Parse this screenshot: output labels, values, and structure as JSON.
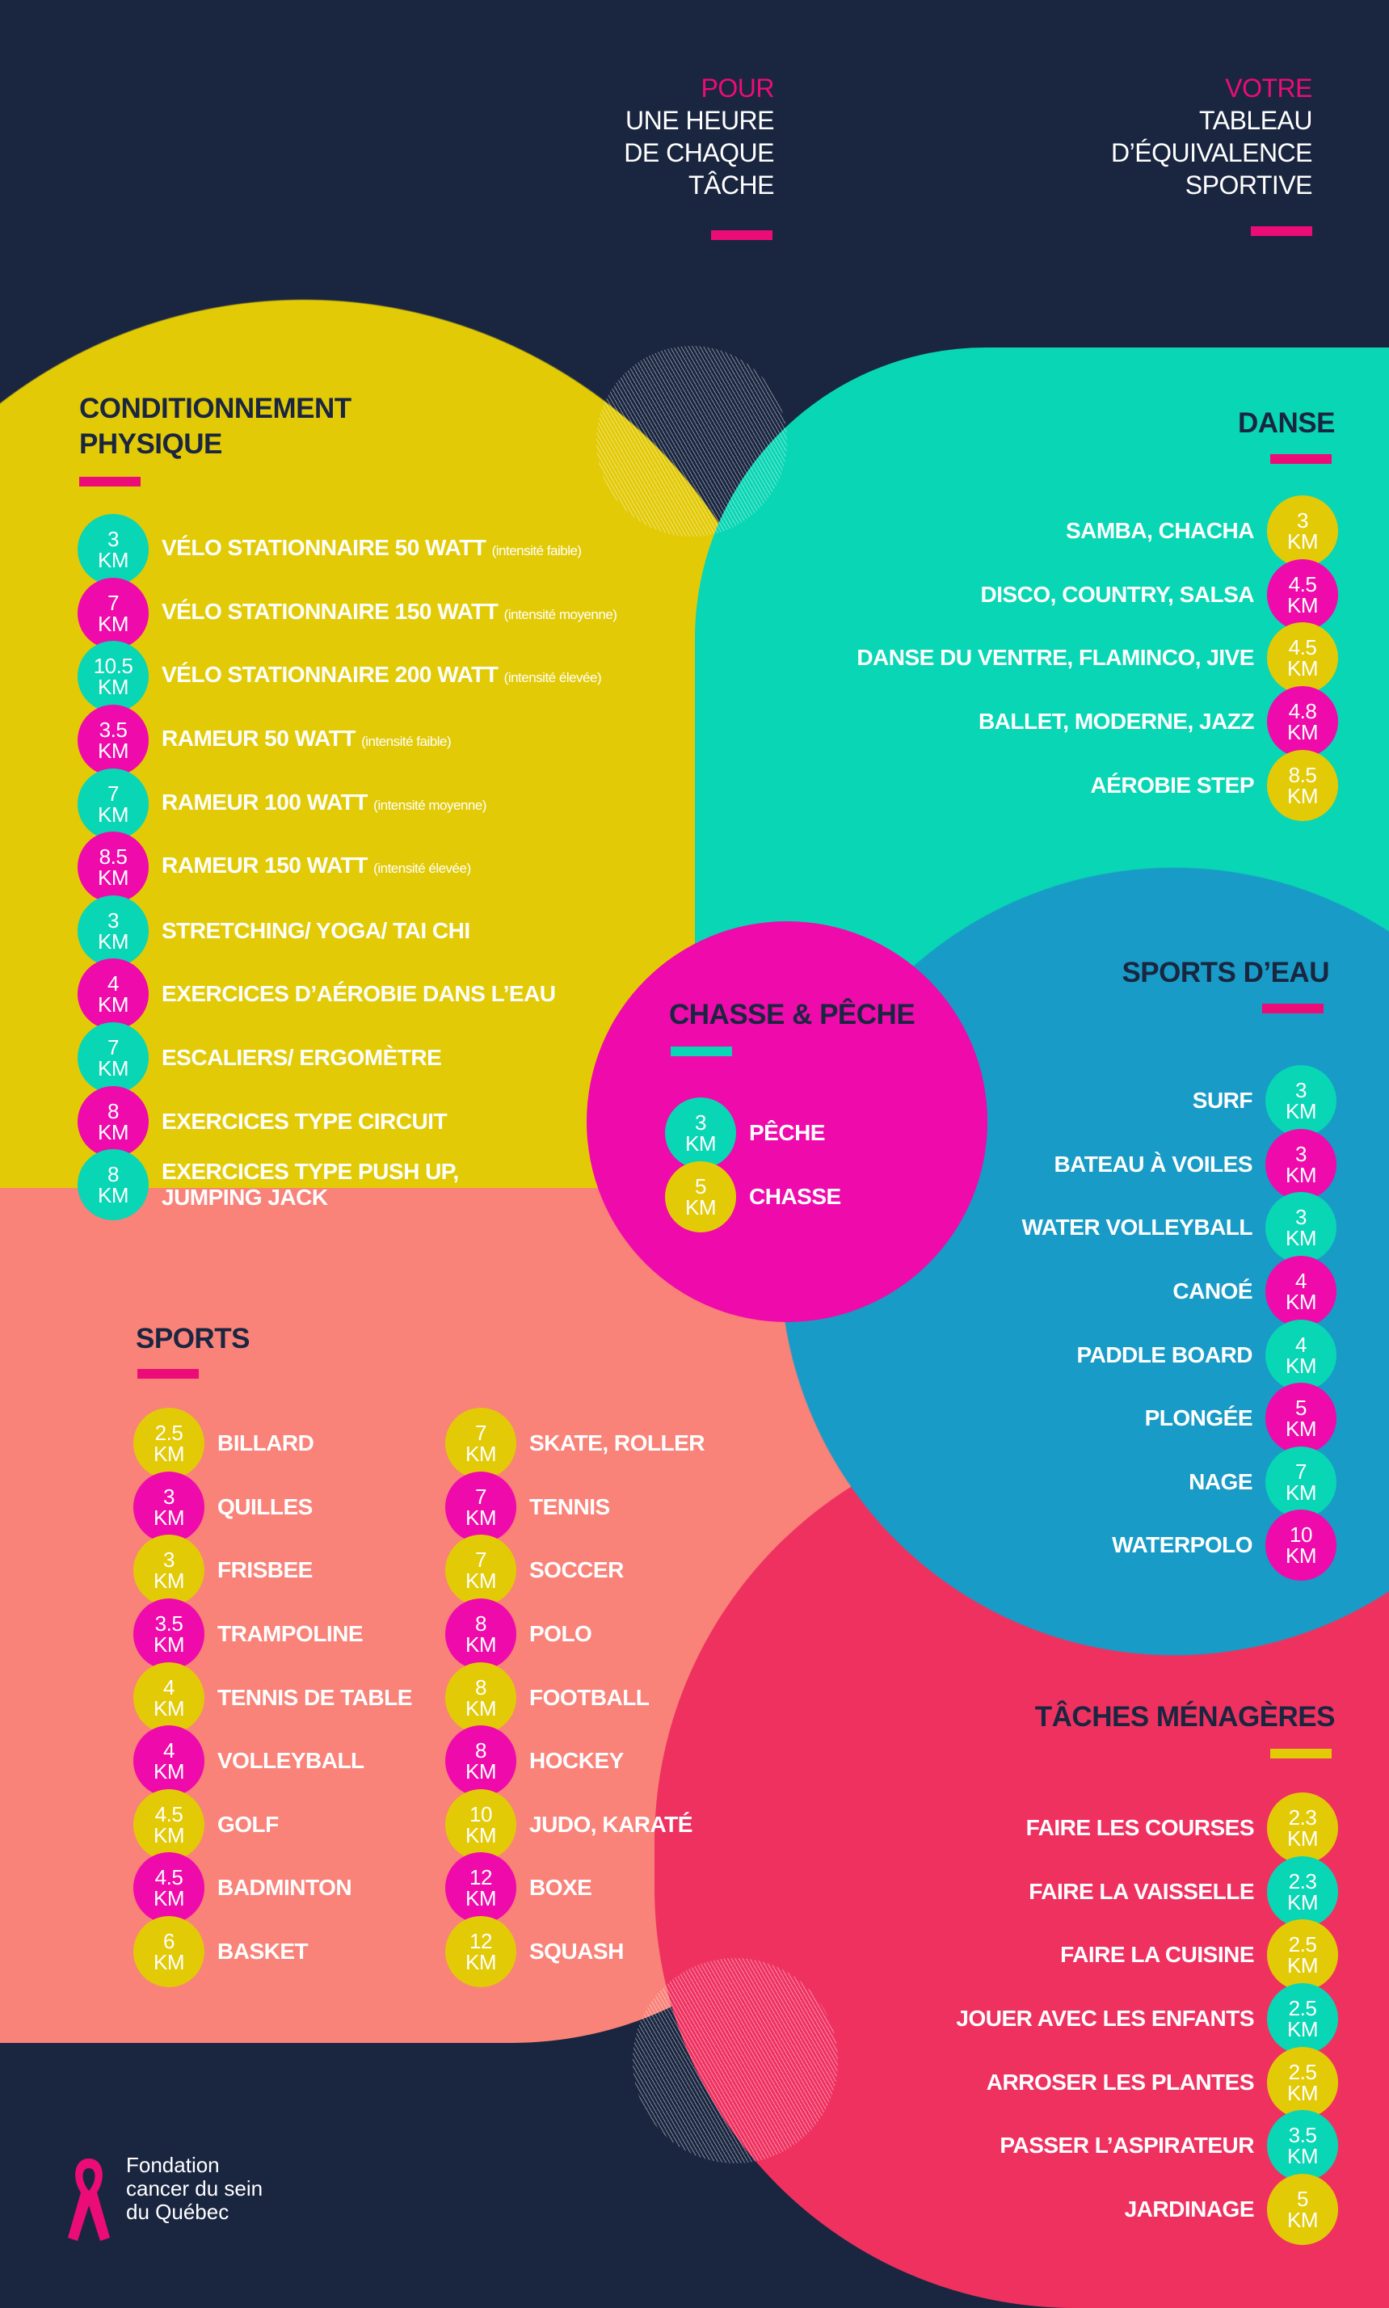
{
  "colors": {
    "background": "#1a2640",
    "yellow": "#e3ca06",
    "teal": "#08d6b4",
    "blue": "#189bc6",
    "salmon": "#f98279",
    "red": "#ef3160",
    "magenta": "#ef0aab",
    "accent_bar": "#ec0c77"
  },
  "header": {
    "left": {
      "accent": "POUR",
      "lines": [
        "UNE HEURE",
        "DE CHAQUE",
        "TÂCHE"
      ]
    },
    "right": {
      "accent": "VOTRE",
      "lines": [
        "TABLEAU",
        "D’ÉQUIVALENCE",
        "SPORTIVE"
      ]
    }
  },
  "unit": "KM",
  "sections": {
    "fitness": {
      "title": [
        "CONDITIONNEMENT",
        "PHYSIQUE"
      ],
      "items": [
        {
          "km": "3",
          "label": "VÉLO STATIONNAIRE 50 WATT",
          "note": "(intensité faible)",
          "color": "#08d6b4"
        },
        {
          "km": "7",
          "label": "VÉLO STATIONNAIRE 150 WATT",
          "note": "(intensité moyenne)",
          "color": "#ef0aab"
        },
        {
          "km": "10.5",
          "label": "VÉLO STATIONNAIRE 200 WATT",
          "note": "(intensité élevée)",
          "color": "#08d6b4"
        },
        {
          "km": "3.5",
          "label": "RAMEUR 50 WATT",
          "note": "(intensité faible)",
          "color": "#ef0aab"
        },
        {
          "km": "7",
          "label": "RAMEUR 100 WATT",
          "note": "(intensité moyenne)",
          "color": "#08d6b4"
        },
        {
          "km": "8.5",
          "label": "RAMEUR 150 WATT",
          "note": "(intensité élevée)",
          "color": "#ef0aab"
        },
        {
          "km": "3",
          "label": "STRETCHING/ YOGA/ TAI CHI",
          "color": "#08d6b4"
        },
        {
          "km": "4",
          "label": "EXERCICES D’AÉROBIE DANS L’EAU",
          "color": "#ef0aab"
        },
        {
          "km": "7",
          "label": "ESCALIERS/ ERGOMÈTRE",
          "color": "#08d6b4"
        },
        {
          "km": "8",
          "label": "EXERCICES TYPE CIRCUIT",
          "color": "#ef0aab"
        },
        {
          "km": "8",
          "label": "EXERCICES TYPE PUSH UP,",
          "label2": "JUMPING JACK",
          "color": "#08d6b4"
        }
      ]
    },
    "danse": {
      "title": [
        "DANSE"
      ],
      "items": [
        {
          "km": "3",
          "label": "SAMBA, CHACHA",
          "color": "#e3ca06"
        },
        {
          "km": "4.5",
          "label": "DISCO, COUNTRY, SALSA",
          "color": "#ef0aab"
        },
        {
          "km": "4.5",
          "label": "DANSE DU VENTRE, FLAMINCO, JIVE",
          "color": "#e3ca06"
        },
        {
          "km": "4.8",
          "label": "BALLET, MODERNE, JAZZ",
          "color": "#ef0aab"
        },
        {
          "km": "8.5",
          "label": "AÉROBIE STEP",
          "color": "#e3ca06"
        }
      ]
    },
    "eau": {
      "title": [
        "SPORTS D’EAU"
      ],
      "items": [
        {
          "km": "3",
          "label": "SURF",
          "color": "#08d6b4"
        },
        {
          "km": "3",
          "label": "BATEAU À VOILES",
          "color": "#ef0aab"
        },
        {
          "km": "3",
          "label": "WATER VOLLEYBALL",
          "color": "#08d6b4"
        },
        {
          "km": "4",
          "label": "CANOÉ",
          "color": "#ef0aab"
        },
        {
          "km": "4",
          "label": "PADDLE BOARD",
          "color": "#08d6b4"
        },
        {
          "km": "5",
          "label": "PLONGÉE",
          "color": "#ef0aab"
        },
        {
          "km": "7",
          "label": "NAGE",
          "color": "#08d6b4"
        },
        {
          "km": "10",
          "label": "WATERPOLO",
          "color": "#ef0aab"
        }
      ]
    },
    "chasse": {
      "title": [
        "CHASSE & PÊCHE"
      ],
      "items": [
        {
          "km": "3",
          "label": "PÊCHE",
          "color": "#08d6b4"
        },
        {
          "km": "5",
          "label": "CHASSE",
          "color": "#e3ca06"
        }
      ]
    },
    "sports": {
      "title": [
        "SPORTS"
      ],
      "col1": [
        {
          "km": "2.5",
          "label": "BILLARD",
          "color": "#e3ca06"
        },
        {
          "km": "3",
          "label": "QUILLES",
          "color": "#ef0aab"
        },
        {
          "km": "3",
          "label": "FRISBEE",
          "color": "#e3ca06"
        },
        {
          "km": "3.5",
          "label": "TRAMPOLINE",
          "color": "#ef0aab"
        },
        {
          "km": "4",
          "label": "TENNIS DE TABLE",
          "color": "#e3ca06"
        },
        {
          "km": "4",
          "label": "VOLLEYBALL",
          "color": "#ef0aab"
        },
        {
          "km": "4.5",
          "label": "GOLF",
          "color": "#e3ca06"
        },
        {
          "km": "4.5",
          "label": "BADMINTON",
          "color": "#ef0aab"
        },
        {
          "km": "6",
          "label": "BASKET",
          "color": "#e3ca06"
        }
      ],
      "col2": [
        {
          "km": "7",
          "label": "SKATE, ROLLER",
          "color": "#e3ca06"
        },
        {
          "km": "7",
          "label": "TENNIS",
          "color": "#ef0aab"
        },
        {
          "km": "7",
          "label": "SOCCER",
          "color": "#e3ca06"
        },
        {
          "km": "8",
          "label": "POLO",
          "color": "#ef0aab"
        },
        {
          "km": "8",
          "label": "FOOTBALL",
          "color": "#e3ca06"
        },
        {
          "km": "8",
          "label": "HOCKEY",
          "color": "#ef0aab"
        },
        {
          "km": "10",
          "label": "JUDO, KARATÉ",
          "color": "#e3ca06"
        },
        {
          "km": "12",
          "label": "BOXE",
          "color": "#ef0aab"
        },
        {
          "km": "12",
          "label": "SQUASH",
          "color": "#e3ca06"
        }
      ]
    },
    "taches": {
      "title": [
        "TÂCHES MÉNAGÈRES"
      ],
      "items": [
        {
          "km": "2.3",
          "label": "FAIRE LES COURSES",
          "color": "#e3ca06"
        },
        {
          "km": "2.3",
          "label": "FAIRE LA VAISSELLE",
          "color": "#08d6b4"
        },
        {
          "km": "2.5",
          "label": "FAIRE LA CUISINE",
          "color": "#e3ca06"
        },
        {
          "km": "2.5",
          "label": "JOUER AVEC LES ENFANTS",
          "color": "#08d6b4"
        },
        {
          "km": "2.5",
          "label": "ARROSER LES PLANTES",
          "color": "#e3ca06"
        },
        {
          "km": "3.5",
          "label": "PASSER L’ASPIRATEUR",
          "color": "#08d6b4"
        },
        {
          "km": "5",
          "label": "JARDINAGE",
          "color": "#e3ca06"
        }
      ]
    }
  },
  "logo": {
    "lines": [
      "Fondation",
      "cancer du sein",
      "du Québec"
    ],
    "icon": "pink-ribbon-icon"
  }
}
